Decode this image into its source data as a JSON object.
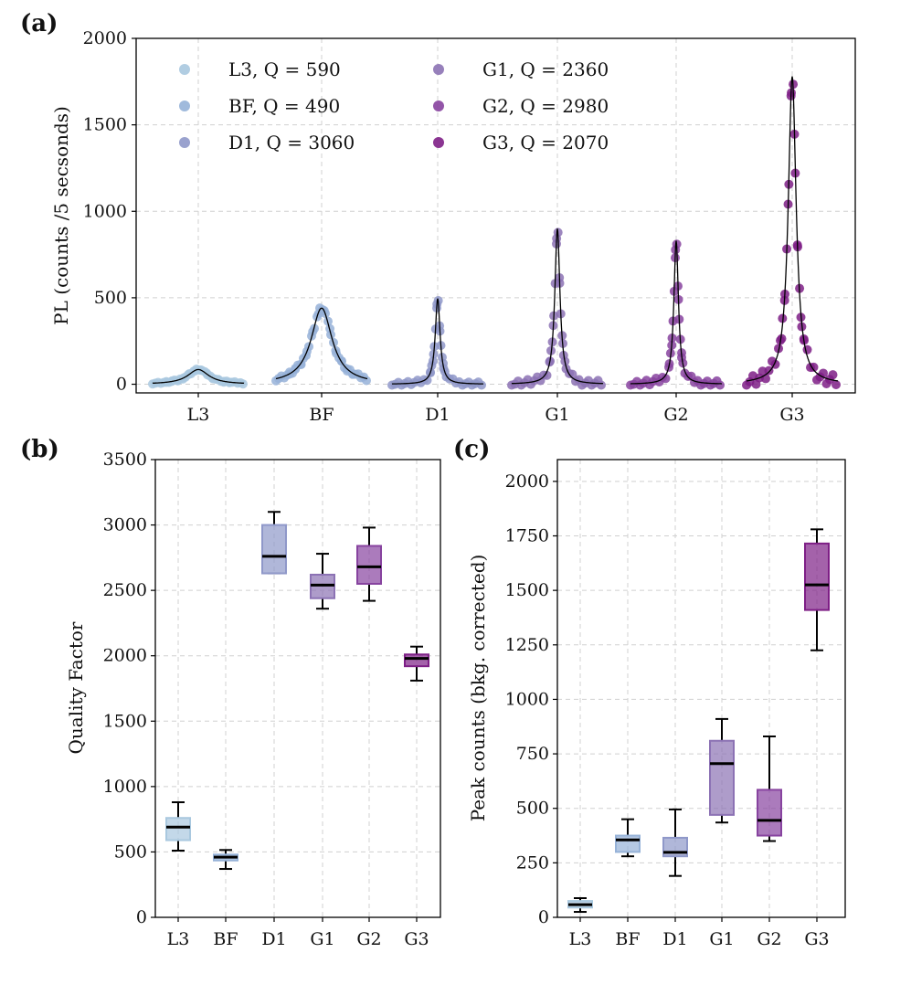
{
  "colors": {
    "L3": "#a9c8df",
    "BF": "#96b2d8",
    "D1": "#8f98c9",
    "G1": "#8c72b4",
    "G2": "#87439f",
    "G3": "#7e1f86",
    "fit": "#000000"
  },
  "chart_data": [
    {
      "panel": "(a)",
      "type": "scatter",
      "title": "",
      "xlabel": "",
      "ylabel": "PL (counts /5 secsonds)",
      "ylim": [
        -50,
        2000
      ],
      "yticks": [
        "0",
        "500",
        "1000",
        "1500",
        "2000"
      ],
      "categories": [
        "L3",
        "BF",
        "D1",
        "G1",
        "G2",
        "G3"
      ],
      "legend_position": "top-left",
      "grid": true,
      "series": [
        {
          "name": "L3",
          "legend": "L3, Q = 590",
          "peak": 85,
          "Q": 590
        },
        {
          "name": "BF",
          "legend": "BF, Q = 490",
          "peak": 440,
          "Q": 490
        },
        {
          "name": "D1",
          "legend": "D1, Q = 3060",
          "peak": 495,
          "Q": 3060
        },
        {
          "name": "G1",
          "legend": "G1, Q = 2360",
          "peak": 900,
          "Q": 2360
        },
        {
          "name": "G2",
          "legend": "G2, Q = 2980",
          "peak": 830,
          "Q": 2980
        },
        {
          "name": "G3",
          "legend": "G3, Q = 2070",
          "peak": 1780,
          "Q": 2070
        }
      ]
    },
    {
      "panel": "(b)",
      "type": "box",
      "title": "",
      "xlabel": "",
      "ylabel": "Quality Factor",
      "ylim": [
        0,
        3500
      ],
      "yticks": [
        "0",
        "500",
        "1000",
        "1500",
        "2000",
        "2500",
        "3000",
        "3500"
      ],
      "categories": [
        "L3",
        "BF",
        "D1",
        "G1",
        "G2",
        "G3"
      ],
      "grid": true,
      "boxes": [
        {
          "name": "L3",
          "min": 510,
          "q1": 590,
          "median": 690,
          "q3": 760,
          "max": 880
        },
        {
          "name": "BF",
          "min": 370,
          "q1": 435,
          "median": 460,
          "q3": 480,
          "max": 515
        },
        {
          "name": "D1",
          "min": 2630,
          "q1": 2630,
          "median": 2760,
          "q3": 3000,
          "max": 3100
        },
        {
          "name": "G1",
          "min": 2360,
          "q1": 2440,
          "median": 2540,
          "q3": 2620,
          "max": 2780
        },
        {
          "name": "G2",
          "min": 2420,
          "q1": 2550,
          "median": 2680,
          "q3": 2840,
          "max": 2980
        },
        {
          "name": "G3",
          "min": 1810,
          "q1": 1920,
          "median": 1980,
          "q3": 2010,
          "max": 2070
        }
      ]
    },
    {
      "panel": "(c)",
      "type": "box",
      "title": "",
      "xlabel": "",
      "ylabel": "Peak counts (bkg. corrected)",
      "ylim": [
        0,
        2100
      ],
      "yticks": [
        "0",
        "250",
        "500",
        "750",
        "1000",
        "1250",
        "1500",
        "1750",
        "2000"
      ],
      "categories": [
        "L3",
        "BF",
        "D1",
        "G1",
        "G2",
        "G3"
      ],
      "grid": true,
      "boxes": [
        {
          "name": "L3",
          "min": 25,
          "q1": 45,
          "median": 58,
          "q3": 75,
          "max": 88
        },
        {
          "name": "BF",
          "min": 280,
          "q1": 300,
          "median": 355,
          "q3": 375,
          "max": 450
        },
        {
          "name": "D1",
          "min": 190,
          "q1": 280,
          "median": 298,
          "q3": 365,
          "max": 495
        },
        {
          "name": "G1",
          "min": 435,
          "q1": 470,
          "median": 705,
          "q3": 810,
          "max": 910
        },
        {
          "name": "G2",
          "min": 350,
          "q1": 375,
          "median": 445,
          "q3": 585,
          "max": 830
        },
        {
          "name": "G3",
          "min": 1225,
          "q1": 1410,
          "median": 1525,
          "q3": 1715,
          "max": 1780
        }
      ]
    }
  ]
}
